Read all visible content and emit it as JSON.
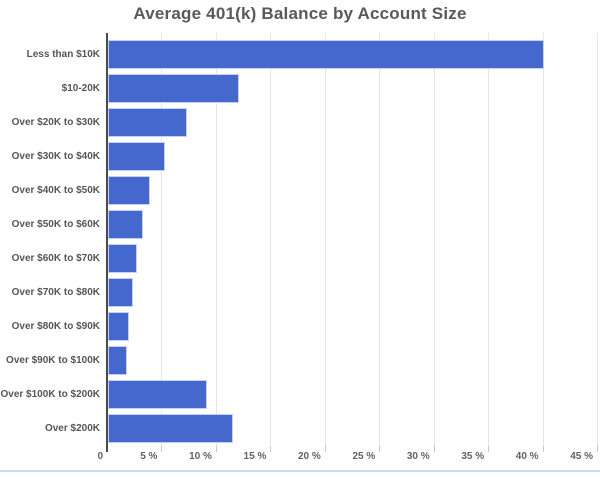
{
  "title": "Average 401(k) Balance by Account Size",
  "colors": {
    "background": "#ffffff",
    "bar": "#4568cf",
    "bar_border": "#c3d2f2",
    "axis_line": "#4a4a4a",
    "gridline": "#e7e7e7",
    "tick_mark": "#c9c9c9",
    "title_text": "#59595c",
    "category_text": "#565659",
    "tick_text": "#626264",
    "bottom_divider": "#c9daf1"
  },
  "chart_data": {
    "type": "bar",
    "orientation": "horizontal",
    "title": "Average 401(k) Balance by Account Size",
    "categories": [
      "Less than $10K",
      "$10-20K",
      "Over $20K to $30K",
      "Over $30K to $40K",
      "Over $40K to $50K",
      "Over $50K to $60K",
      "Over $60K to $70K",
      "Over $70K to $80K",
      "Over $80K to $90K",
      "Over $90K to $100K",
      "Over $100K to $200K",
      "Over $200K"
    ],
    "values": [
      40,
      12,
      7.3,
      5.2,
      3.9,
      3.2,
      2.7,
      2.3,
      1.9,
      1.7,
      9.1,
      11.5
    ],
    "value_unit": "%",
    "xlabel": "",
    "ylabel": "",
    "x_tick_labels": [
      "0",
      "5 %",
      "10 %",
      "15 %",
      "20 %",
      "25 %",
      "30 %",
      "35 %",
      "40 %",
      "45 %"
    ],
    "x_tick_values": [
      0,
      5,
      10,
      15,
      20,
      25,
      30,
      35,
      40,
      45
    ],
    "xlim": [
      0,
      45.3
    ],
    "grid": "vertical-only",
    "legend": "none"
  }
}
